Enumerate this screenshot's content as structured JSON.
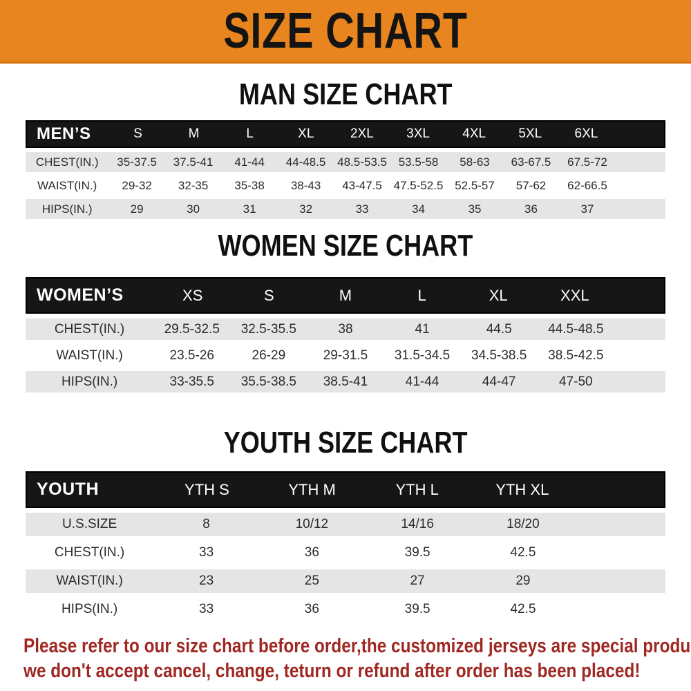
{
  "banner": {
    "title": "SIZE CHART"
  },
  "colors": {
    "banner_bg": "#E8851E",
    "header_bar_bg": "#161616",
    "alt_row_bg": "#E5E5E6",
    "footer_text": "#9F2823",
    "title_text": "#101010"
  },
  "chart_data": [
    {
      "type": "table",
      "title": "MAN SIZE CHART",
      "header": {
        "label": "MEN’S",
        "sizes": [
          "S",
          "M",
          "L",
          "XL",
          "2XL",
          "3XL",
          "4XL",
          "5XL",
          "6XL"
        ]
      },
      "rows": [
        {
          "label": "CHEST(IN.)",
          "values": [
            "35-37.5",
            "37.5-41",
            "41-44",
            "44-48.5",
            "48.5-53.5",
            "53.5-58",
            "58-63",
            "63-67.5",
            "67.5-72"
          ]
        },
        {
          "label": "WAIST(IN.)",
          "values": [
            "29-32",
            "32-35",
            "35-38",
            "38-43",
            "43-47.5",
            "47.5-52.5",
            "52.5-57",
            "57-62",
            "62-66.5"
          ]
        },
        {
          "label": "HIPS(IN.)",
          "values": [
            "29",
            "30",
            "31",
            "32",
            "33",
            "34",
            "35",
            "36",
            "37"
          ]
        }
      ]
    },
    {
      "type": "table",
      "title": "WOMEN SIZE CHART",
      "header": {
        "label": "WOMEN’S",
        "sizes": [
          "XS",
          "S",
          "M",
          "L",
          "XL",
          "XXL"
        ]
      },
      "rows": [
        {
          "label": "CHEST(IN.)",
          "values": [
            "29.5-32.5",
            "32.5-35.5",
            "38",
            "41",
            "44.5",
            "44.5-48.5"
          ]
        },
        {
          "label": "WAIST(IN.)",
          "values": [
            "23.5-26",
            "26-29",
            "29-31.5",
            "31.5-34.5",
            "34.5-38.5",
            "38.5-42.5"
          ]
        },
        {
          "label": "HIPS(IN.)",
          "values": [
            "33-35.5",
            "35.5-38.5",
            "38.5-41",
            "41-44",
            "44-47",
            "47-50"
          ]
        }
      ]
    },
    {
      "type": "table",
      "title": "YOUTH SIZE CHART",
      "header": {
        "label": "YOUTH",
        "sizes": [
          "YTH S",
          "YTH M",
          "YTH L",
          "YTH XL"
        ]
      },
      "rows": [
        {
          "label": "U.S.SIZE",
          "values": [
            "8",
            "10/12",
            "14/16",
            "18/20"
          ]
        },
        {
          "label": "CHEST(IN.)",
          "values": [
            "33",
            "36",
            "39.5",
            "42.5"
          ]
        },
        {
          "label": "WAIST(IN.)",
          "values": [
            "23",
            "25",
            "27",
            "29"
          ]
        },
        {
          "label": "HIPS(IN.)",
          "values": [
            "33",
            "36",
            "39.5",
            "42.5"
          ]
        }
      ]
    }
  ],
  "footer": {
    "lines": [
      "Please refer to our size chart before order,the customized jerseys are special products,",
      "we don't accept cancel, change, teturn or refund after order has been placed!"
    ]
  }
}
